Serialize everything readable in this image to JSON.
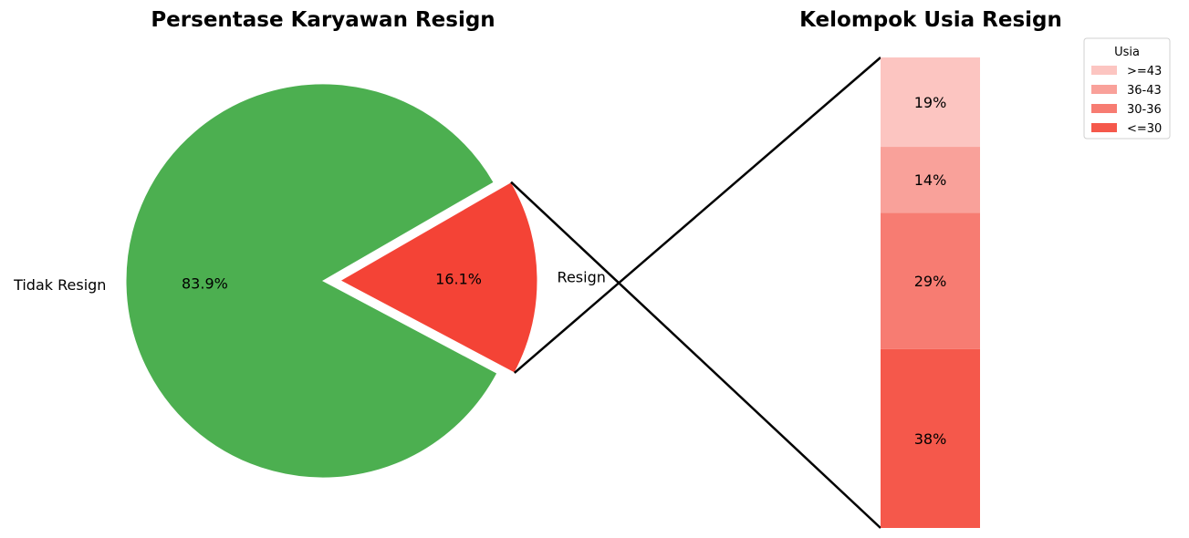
{
  "chart_data": [
    {
      "type": "pie",
      "title": "Persentase Karyawan Resign",
      "start_angle_deg": 30,
      "slices": [
        {
          "label": "Tidak Resign",
          "value": 83.9,
          "value_label": "83.9%",
          "color": "#4CAF50",
          "explode": false
        },
        {
          "label": "Resign",
          "value": 16.1,
          "value_label": "16.1%",
          "color": "#F44336",
          "explode": true
        }
      ]
    },
    {
      "type": "bar",
      "stacked": true,
      "title": "Kelompok Usia Resign",
      "segments": [
        {
          "name": "<=30",
          "value": 38,
          "value_label": "38%",
          "color": "#F5584B"
        },
        {
          "name": "30-36",
          "value": 29,
          "value_label": "29%",
          "color": "#F77C72"
        },
        {
          "name": "36-43",
          "value": 14,
          "value_label": "14%",
          "color": "#F9A19A"
        },
        {
          "name": ">=43",
          "value": 19,
          "value_label": "19%",
          "color": "#FCC5C1"
        }
      ],
      "legend": {
        "title": "Usia",
        "placement": "top-right",
        "entries": [
          ">=43",
          "36-43",
          "30-36",
          "<=30"
        ]
      }
    }
  ]
}
